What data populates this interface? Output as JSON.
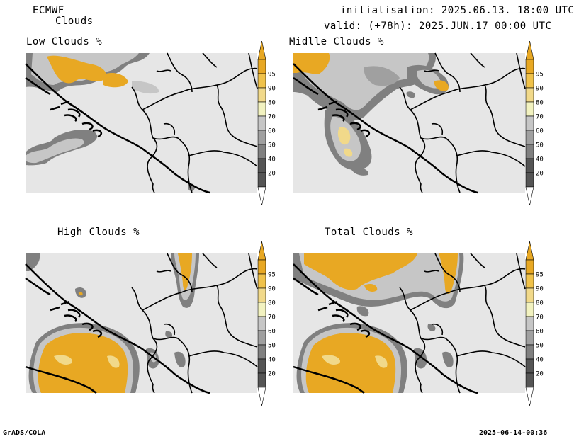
{
  "header": {
    "model": "ECMWF",
    "product": "Clouds",
    "init": "initialisation: 2025.06.13. 18:00 UTC",
    "valid": "valid: (+78h): 2025.JUN.17 00:00 UTC"
  },
  "panels": [
    {
      "id": "low",
      "title": "Low Clouds %"
    },
    {
      "id": "middle",
      "title": "Midlle Clouds %"
    },
    {
      "id": "high",
      "title": "High Clouds %"
    },
    {
      "id": "total",
      "title": "Total Clouds %"
    }
  ],
  "colorbar": {
    "levels": [
      "20",
      "40",
      "50",
      "60",
      "70",
      "80",
      "90",
      "95"
    ],
    "colors": {
      "c20": "#555555",
      "c40": "#808080",
      "c50": "#a0a0a0",
      "c60": "#c6c6c6",
      "c70": "#f2f2c0",
      "c80": "#f1d98a",
      "c90": "#f0c24a",
      "c95": "#e8a823",
      "below": "#ffffff",
      "background": "#e6e6e6"
    }
  },
  "footer": {
    "left": "GrADS/COLA",
    "right": "2025-06-14-00:36"
  }
}
